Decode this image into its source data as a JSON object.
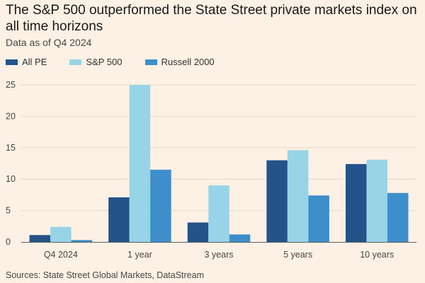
{
  "title": "The S&P 500 outperformed the State Street private markets index on all time horizons",
  "subtitle": "Data as of Q4 2024",
  "source": "Sources: State Street Global Markets, DataStream",
  "colors": {
    "background": "#fdf1e6",
    "gridline": "#e6d9ce",
    "baseline": "#66605c"
  },
  "chart_data": {
    "type": "bar",
    "categories": [
      "Q4 2024",
      "1 year",
      "3 years",
      "5 years",
      "10 years"
    ],
    "series": [
      {
        "name": "All PE",
        "color": "#24538a",
        "values": [
          1.1,
          7.1,
          3.1,
          13.0,
          12.4
        ]
      },
      {
        "name": "S&P 500",
        "color": "#98d4e8",
        "values": [
          2.4,
          25.0,
          9.0,
          14.6,
          13.1
        ]
      },
      {
        "name": "Russell 2000",
        "color": "#3d8ecb",
        "values": [
          0.3,
          11.5,
          1.2,
          7.4,
          7.8
        ]
      }
    ],
    "yticks": [
      0,
      5,
      10,
      15,
      20,
      25
    ],
    "ylim": [
      0,
      25
    ],
    "grid": true,
    "legend_position": "top-left"
  }
}
